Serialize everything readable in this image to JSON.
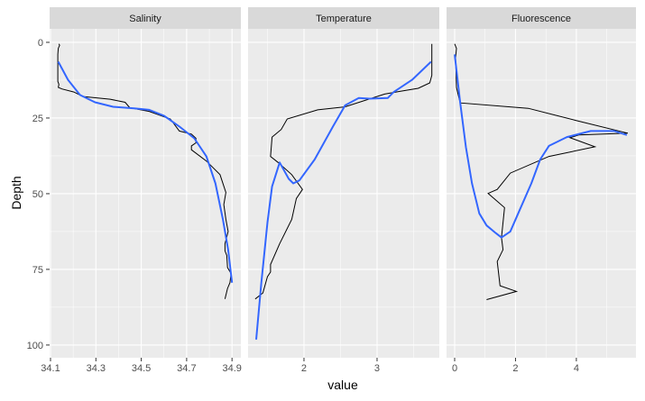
{
  "chart_data": {
    "type": "line",
    "xlabel": "value",
    "ylabel": "Depth",
    "ylim": [
      -4.46,
      104.2
    ],
    "y_reversed": true,
    "y_ticks": [
      0,
      25,
      50,
      75,
      100
    ],
    "y_tick_labels": [
      "0",
      "25",
      "50",
      "75",
      "100"
    ],
    "grid": true,
    "colors": {
      "panel": "#ebebeb",
      "strip": "#d9d9d9",
      "observed": "#000000",
      "smooth": "#3366ff",
      "tick_text": "#4d4d4d"
    },
    "facets": [
      {
        "title": "Salinity",
        "xlim": [
          34.096,
          34.939
        ],
        "x_ticks": [
          34.1,
          34.3,
          34.5,
          34.7,
          34.9
        ],
        "x_tick_labels": [
          "34.1",
          "34.3",
          "34.5",
          "34.7",
          "34.9"
        ],
        "x_minor": [
          34.2,
          34.4,
          34.6,
          34.8
        ],
        "observed": [
          [
            34.137,
            0.5
          ],
          [
            34.14,
            1.0
          ],
          [
            34.134,
            2.0
          ],
          [
            34.132,
            4.0
          ],
          [
            34.132,
            12.9
          ],
          [
            34.137,
            13.9
          ],
          [
            34.134,
            14.9
          ],
          [
            34.15,
            15.4
          ],
          [
            34.203,
            16.4
          ],
          [
            34.243,
            17.9
          ],
          [
            34.363,
            18.8
          ],
          [
            34.429,
            19.8
          ],
          [
            34.449,
            21.6
          ],
          [
            34.535,
            22.8
          ],
          [
            34.601,
            24.6
          ],
          [
            34.628,
            25.3
          ],
          [
            34.668,
            29.3
          ],
          [
            34.721,
            30.3
          ],
          [
            34.741,
            31.7
          ],
          [
            34.741,
            33.2
          ],
          [
            34.721,
            34.2
          ],
          [
            34.721,
            35.5
          ],
          [
            34.787,
            39.2
          ],
          [
            34.847,
            43.7
          ],
          [
            34.873,
            49.6
          ],
          [
            34.864,
            53.6
          ],
          [
            34.873,
            58.5
          ],
          [
            34.883,
            62.5
          ],
          [
            34.869,
            66.5
          ],
          [
            34.869,
            68.9
          ],
          [
            34.877,
            70.4
          ],
          [
            34.88,
            74.4
          ],
          [
            34.896,
            76.4
          ],
          [
            34.891,
            79.4
          ],
          [
            34.88,
            81.3
          ],
          [
            34.869,
            84.8
          ]
        ],
        "smooth": [
          [
            34.134,
            6.4
          ],
          [
            34.177,
            12.4
          ],
          [
            34.23,
            17.4
          ],
          [
            34.296,
            19.8
          ],
          [
            34.376,
            21.3
          ],
          [
            34.469,
            21.8
          ],
          [
            34.535,
            22.3
          ],
          [
            34.601,
            24.3
          ],
          [
            34.668,
            27.8
          ],
          [
            34.734,
            31.7
          ],
          [
            34.787,
            37.7
          ],
          [
            34.827,
            46.6
          ],
          [
            34.86,
            58.5
          ],
          [
            34.883,
            68.5
          ],
          [
            34.9,
            79.4
          ]
        ]
      },
      {
        "title": "Temperature",
        "xlim": [
          1.235,
          3.852
        ],
        "x_ticks": [
          2,
          3
        ],
        "x_tick_labels": [
          "2",
          "3"
        ],
        "x_minor": [
          1.5,
          2.5,
          3.5
        ],
        "observed": [
          [
            3.75,
            0.5
          ],
          [
            3.75,
            10.9
          ],
          [
            3.721,
            13.4
          ],
          [
            3.563,
            15.2
          ],
          [
            3.313,
            16.2
          ],
          [
            3.104,
            17.1
          ],
          [
            2.563,
            21.3
          ],
          [
            2.188,
            22.3
          ],
          [
            1.771,
            25.3
          ],
          [
            1.688,
            28.8
          ],
          [
            1.563,
            31.3
          ],
          [
            1.542,
            37.7
          ],
          [
            1.646,
            39.7
          ],
          [
            1.833,
            43.7
          ],
          [
            1.979,
            48.6
          ],
          [
            1.896,
            51.6
          ],
          [
            1.833,
            58.5
          ],
          [
            1.667,
            66.5
          ],
          [
            1.542,
            73.4
          ],
          [
            1.542,
            75.9
          ],
          [
            1.5,
            77.4
          ],
          [
            1.438,
            82.8
          ],
          [
            1.333,
            84.8
          ]
        ],
        "smooth": [
          [
            3.738,
            6.4
          ],
          [
            3.479,
            12.4
          ],
          [
            3.229,
            16.4
          ],
          [
            3.146,
            18.4
          ],
          [
            2.896,
            18.6
          ],
          [
            2.75,
            18.4
          ],
          [
            2.563,
            20.8
          ],
          [
            2.396,
            27.8
          ],
          [
            2.146,
            38.7
          ],
          [
            1.938,
            45.6
          ],
          [
            1.854,
            46.6
          ],
          [
            1.792,
            45.1
          ],
          [
            1.667,
            39.7
          ],
          [
            1.563,
            47.6
          ],
          [
            1.5,
            59.5
          ],
          [
            1.417,
            79.4
          ],
          [
            1.346,
            98.2
          ]
        ]
      },
      {
        "title": "Fluorescence",
        "xlim": [
          -0.267,
          5.96
        ],
        "x_ticks": [
          0,
          2,
          4
        ],
        "x_tick_labels": [
          "0",
          "2",
          "4"
        ],
        "x_minor": [
          1,
          3,
          5
        ],
        "observed": [
          [
            0,
            0.5
          ],
          [
            0.06,
            2.0
          ],
          [
            0.03,
            5.0
          ],
          [
            0.06,
            14.9
          ],
          [
            0.18,
            20.0
          ],
          [
            2.42,
            21.8
          ],
          [
            3.98,
            25.8
          ],
          [
            5.69,
            30.0
          ],
          [
            4.08,
            30.6
          ],
          [
            3.79,
            31.5
          ],
          [
            4.61,
            34.5
          ],
          [
            3.1,
            37.7
          ],
          [
            1.83,
            43.2
          ],
          [
            1.4,
            48.6
          ],
          [
            1.1,
            49.9
          ],
          [
            1.64,
            54.6
          ],
          [
            1.54,
            64.5
          ],
          [
            1.59,
            68.5
          ],
          [
            1.4,
            72.4
          ],
          [
            1.49,
            80.4
          ],
          [
            2.03,
            82.3
          ],
          [
            1.05,
            85.0
          ]
        ],
        "smooth": [
          [
            0,
            4.0
          ],
          [
            0.18,
            19.8
          ],
          [
            0.37,
            34.7
          ],
          [
            0.57,
            46.6
          ],
          [
            0.81,
            56.5
          ],
          [
            1.05,
            60.5
          ],
          [
            1.35,
            63.0
          ],
          [
            1.54,
            64.5
          ],
          [
            1.83,
            62.5
          ],
          [
            2.13,
            55.6
          ],
          [
            2.52,
            46.6
          ],
          [
            2.81,
            38.7
          ],
          [
            3.1,
            34.2
          ],
          [
            3.69,
            31.3
          ],
          [
            4.47,
            29.3
          ],
          [
            5.25,
            29.3
          ],
          [
            5.66,
            30.6
          ]
        ]
      }
    ]
  }
}
